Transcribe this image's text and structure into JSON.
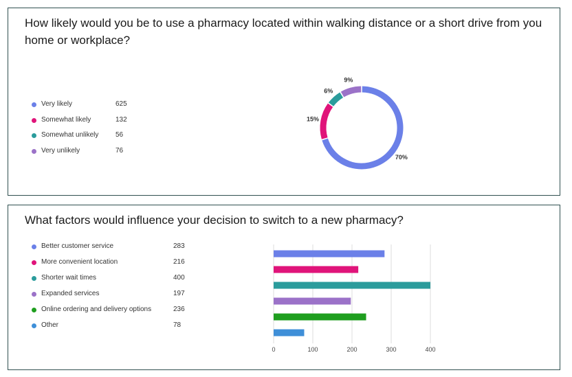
{
  "q1": {
    "question": "How likely would you be to use a pharmacy located within walking distance or a short drive from you home or workplace?"
  },
  "q2": {
    "question": "What factors would influence your decision to switch to a new pharmacy?"
  },
  "chart_data": [
    {
      "type": "pie",
      "variant": "donut",
      "categories": [
        "Very likely",
        "Somewhat likely",
        "Somewhat unlikely",
        "Very unlikely"
      ],
      "values": [
        625,
        132,
        56,
        76
      ],
      "percent_labels": [
        "70%",
        "15%",
        "6%",
        "9%"
      ],
      "colors": [
        "#6b80e8",
        "#e0147a",
        "#2b9c9c",
        "#9b72c8"
      ],
      "legend": "left"
    },
    {
      "type": "bar",
      "orientation": "horizontal",
      "categories": [
        "Better customer service",
        "More convenient location",
        "Shorter wait times",
        "Expanded services",
        "Online ordering and delivery options",
        "Other"
      ],
      "values": [
        283,
        216,
        400,
        197,
        236,
        78
      ],
      "colors": [
        "#6b80e8",
        "#e0147a",
        "#2b9c9c",
        "#9b72c8",
        "#1f9e1f",
        "#3f8fd8"
      ],
      "xticks": [
        "0",
        "100",
        "200",
        "300",
        "400"
      ],
      "xlim": [
        0,
        400
      ],
      "grid": true,
      "legend": "left"
    }
  ]
}
